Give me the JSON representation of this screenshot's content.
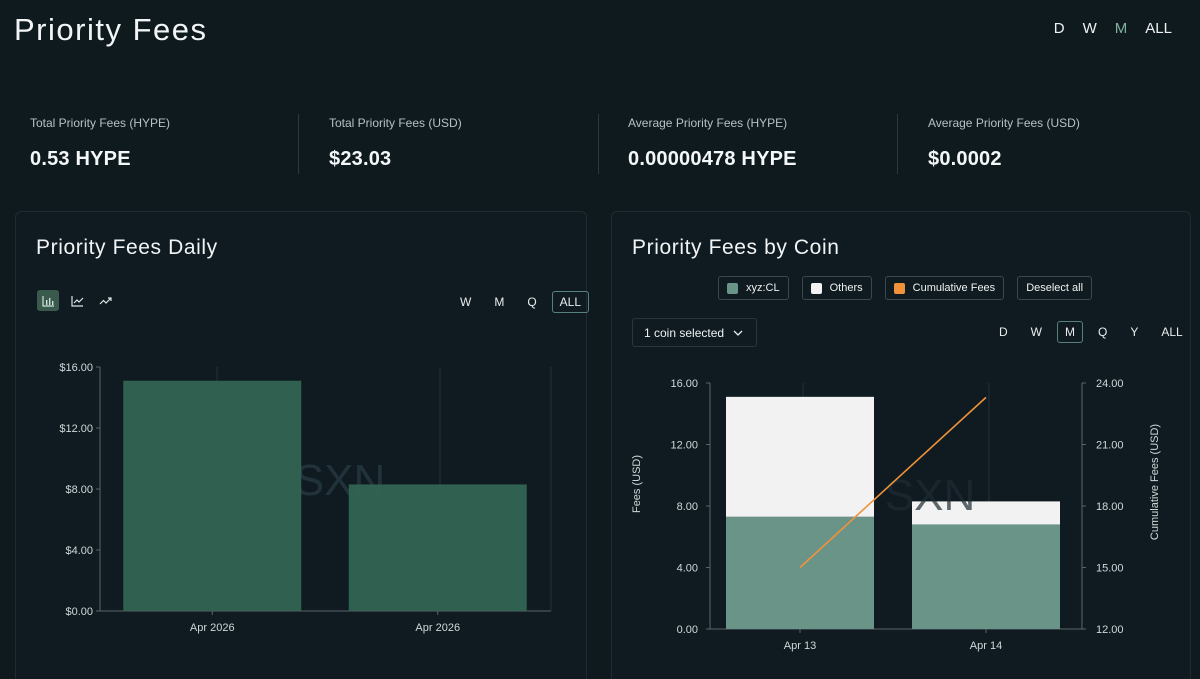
{
  "header": {
    "title": "Priority Fees",
    "range_tabs": [
      "D",
      "W",
      "M",
      "ALL"
    ],
    "active_range": "M"
  },
  "stats": [
    {
      "label": "Total Priority Fees (HYPE)",
      "value": "0.53 HYPE"
    },
    {
      "label": "Total Priority Fees (USD)",
      "value": "$23.03"
    },
    {
      "label": "Average Priority Fees (HYPE)",
      "value": "0.00000478 HYPE"
    },
    {
      "label": "Average Priority Fees (USD)",
      "value": "$0.0002"
    }
  ],
  "daily_panel": {
    "title": "Priority Fees Daily",
    "chart_types": [
      "bar-chart-icon",
      "line-chart-icon",
      "trend-chart-icon"
    ],
    "active_chart_type": "bar-chart-icon",
    "period_tabs": [
      "W",
      "M",
      "Q",
      "ALL"
    ],
    "active_period": "ALL",
    "watermark": "SXN"
  },
  "coin_panel": {
    "title": "Priority Fees by Coin",
    "legend": [
      {
        "label": "xyz:CL",
        "color": "#6a9488"
      },
      {
        "label": "Others",
        "color": "#f2f2f2"
      },
      {
        "label": "Cumulative Fees",
        "color": "#f0923a"
      }
    ],
    "deselect_label": "Deselect all",
    "coin_select_label": "1 coin selected",
    "period_tabs": [
      "D",
      "W",
      "M",
      "Q",
      "Y",
      "ALL"
    ],
    "active_period": "M",
    "watermark": "SXN"
  },
  "colors": {
    "bar_green": "#326453",
    "xyz_color": "#6a9488",
    "others_color": "#f2f2f2",
    "cumulative_color": "#f0923a",
    "accent": "#7fb39e"
  },
  "chart_data": [
    {
      "type": "bar",
      "title": "Priority Fees Daily",
      "categories": [
        "Apr 2026",
        "Apr 2026"
      ],
      "values": [
        15.1,
        8.3
      ],
      "y_ticks": [
        "$0.00",
        "$4.00",
        "$8.00",
        "$12.00",
        "$16.00"
      ],
      "ylim": [
        0,
        16
      ],
      "grid": "vertical"
    },
    {
      "type": "bar",
      "stacked": true,
      "title": "Priority Fees by Coin",
      "categories": [
        "Apr 13",
        "Apr 14"
      ],
      "series": [
        {
          "name": "xyz:CL",
          "values": [
            7.3,
            6.8
          ]
        },
        {
          "name": "Others",
          "values": [
            7.8,
            1.5
          ]
        }
      ],
      "line_series": {
        "name": "Cumulative Fees",
        "values": [
          15.0,
          23.3
        ],
        "axis": "right"
      },
      "ylabel": "Fees (USD)",
      "y2label": "Cumulative Fees (USD)",
      "y_ticks": [
        "0.00",
        "4.00",
        "8.00",
        "12.00",
        "16.00"
      ],
      "y2_ticks": [
        "12.00",
        "15.00",
        "18.00",
        "21.00",
        "24.00"
      ],
      "ylim": [
        0,
        16
      ],
      "y2lim": [
        12,
        24
      ]
    }
  ]
}
